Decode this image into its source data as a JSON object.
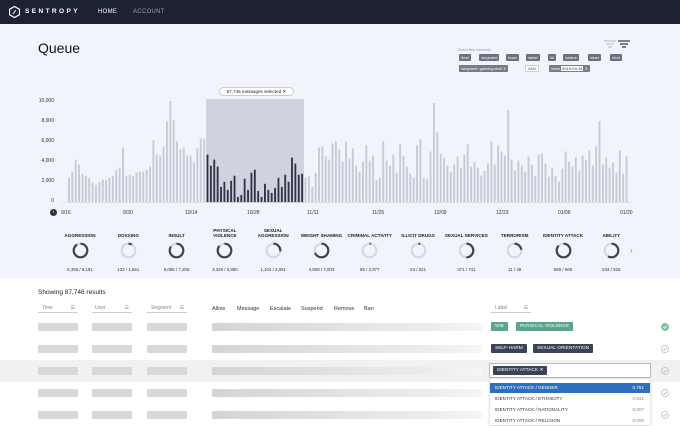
{
  "nav": {
    "brand": "SENTROPY",
    "home": "HOME",
    "account": "ACCOUNT"
  },
  "page": {
    "title": "Queue"
  },
  "filters": {
    "label": "Select filter elements",
    "row1": [
      "/text",
      "/segment",
      "/user",
      "/label",
      "/id",
      "/status",
      "/start",
      "/end"
    ],
    "chip_segment": "/segment: gaming-chat",
    "and_label": "AND",
    "chip_start_key": "/start",
    "chip_start_val": "2019-09-16"
  },
  "chart": {
    "selection_label": "87,746 messages selected"
  },
  "chart_data": {
    "type": "bar",
    "y_ticks": [
      "10,000",
      "8,000",
      "6,000",
      "4,000",
      "2,000",
      "0"
    ],
    "ylim": [
      0,
      10000
    ],
    "x_ticks": [
      "9/16",
      "9/30",
      "10/14",
      "10/28",
      "11/11",
      "11/25",
      "12/09",
      "12/23",
      "01/06",
      "01/20"
    ],
    "values": [
      2400,
      3000,
      4200,
      3700,
      2800,
      2600,
      2400,
      1900,
      1700,
      2000,
      2200,
      2200,
      2400,
      2600,
      3200,
      3400,
      5400,
      2600,
      2700,
      2600,
      2900,
      3000,
      3000,
      3200,
      3500,
      6100,
      4700,
      4600,
      5500,
      8000,
      10100,
      8100,
      6000,
      5200,
      5400,
      4600,
      4600,
      3900,
      5300,
      6300,
      6300,
      4700,
      3600,
      4200,
      3500,
      1500,
      2000,
      1200,
      2100,
      2600,
      500,
      700,
      2300,
      1200,
      2900,
      3200,
      1100,
      500,
      1800,
      1200,
      900,
      1400,
      2400,
      1500,
      2700,
      2000,
      4400,
      3800,
      2700,
      2800,
      2400,
      2600,
      1500,
      2900,
      5400,
      5500,
      4500,
      4200,
      5800,
      6000,
      5200,
      4000,
      6000,
      4300,
      5300,
      3600,
      3000,
      4000,
      5600,
      4100,
      4600,
      2200,
      2400,
      6000,
      4100,
      3600,
      4700,
      2900,
      5700,
      4600,
      3500,
      2800,
      2400,
      5600,
      6200,
      2400,
      2300,
      5000,
      9800,
      6900,
      4800,
      4400,
      3600,
      3000,
      3700,
      4500,
      3400,
      4700,
      5700,
      3500,
      4000,
      3400,
      2600,
      3100,
      3800,
      6000,
      3700,
      5600,
      5000,
      4600,
      9100,
      4200,
      3100,
      4100,
      3600,
      3000,
      4500,
      3700,
      2600,
      4700,
      4800,
      3800,
      2500,
      3400,
      2600,
      2000,
      3300,
      5000,
      4000,
      3500,
      4400,
      3100,
      4600,
      4200,
      5100,
      3600,
      5500,
      8000,
      3700,
      4400,
      3400,
      3900,
      2900,
      5100,
      2800,
      4500
    ]
  },
  "categories": [
    {
      "name": "AGGRESSION",
      "value": "8,355 / 9,191",
      "ratio": 0.91
    },
    {
      "name": "DOXXING",
      "value": "133 / 1,661",
      "ratio": 0.08
    },
    {
      "name": "INSULT",
      "value": "6,085 / 7,206",
      "ratio": 0.84
    },
    {
      "name": "PHYSICAL VIOLENCE",
      "value": "3,328 / 3,880",
      "ratio": 0.86
    },
    {
      "name": "SEXUAL AGGRESSION",
      "value": "1,104 / 4,051",
      "ratio": 0.27
    },
    {
      "name": "WEIGHT SHAMING",
      "value": "4,838 / 7,003",
      "ratio": 0.69
    },
    {
      "name": "CRIMINAL ACTIVITY",
      "value": "85 / 2,977",
      "ratio": 0.03
    },
    {
      "name": "ILLICIT DRUGS",
      "value": "24 / 621",
      "ratio": 0.04
    },
    {
      "name": "SEXUAL SERVICES",
      "value": "371 / 741",
      "ratio": 0.5
    },
    {
      "name": "TERRORISM",
      "value": "11 / 48",
      "ratio": 0.23
    },
    {
      "name": "IDENTITY ATTACK",
      "value": "580 / 665",
      "ratio": 0.87
    },
    {
      "name": "ABILITY",
      "value": "534 / 916",
      "ratio": 0.58
    }
  ],
  "results": {
    "summary": "Showing 87,746 results"
  },
  "columns": {
    "time": "Time",
    "user": "User",
    "segment": "Segment",
    "label": "Label"
  },
  "actions": [
    "Allow",
    "Message",
    "Escalate",
    "Suspend",
    "Remove",
    "Ban"
  ],
  "rows": [
    {
      "tags": [
        "WIE",
        "PHYSICAL VIOLENCE"
      ]
    },
    {
      "tags": [
        "SELF-HARM",
        "SEXUAL ORIENTATION"
      ]
    },
    {
      "tags": [
        "IDENTITY ATTACK"
      ]
    }
  ],
  "dropdown": [
    {
      "label": "IDENTITY ATTACK / GENDER",
      "score": "0.761"
    },
    {
      "label": "IDENTITY ATTACK / ETHNICITY",
      "score": "0.631"
    },
    {
      "label": "IDENTITY ATTACK / NATIONALITY",
      "score": "0.007"
    },
    {
      "label": "IDENTITY ATTACK / RELIGION",
      "score": "0.000"
    }
  ],
  "colors": {
    "nav_bg": "#1c2233",
    "panel_bg": "#f2f4fb",
    "bar": "#c6c9d6",
    "bar_selected": "#2f3547",
    "tag_green": "#5aa58c",
    "tag_dark": "#3b4356",
    "selected_option": "#2f6fbf",
    "check_green": "#7ac29a"
  }
}
